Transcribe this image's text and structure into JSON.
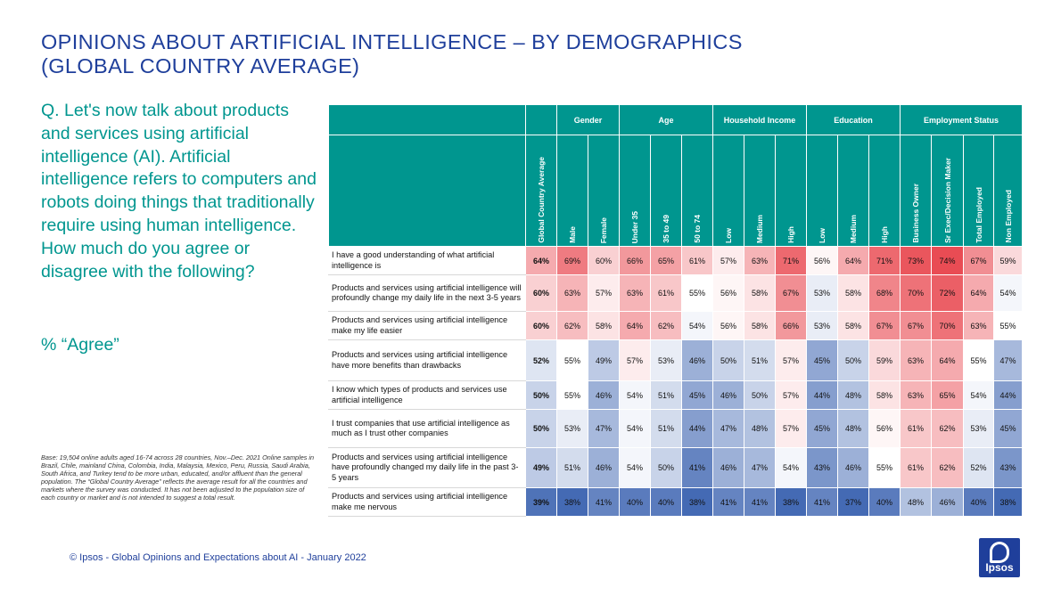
{
  "title_line1": "OPINIONS ABOUT ARTIFICIAL INTELLIGENCE – BY DEMOGRAPHICS",
  "title_line2": "(GLOBAL COUNTRY AVERAGE)",
  "question": "Q. Let's now talk about products and services using artificial intelligence (AI). Artificial intelligence refers to computers and robots doing things that traditionally require using human intelligence. How much do you agree or disagree with the following?",
  "agree_label": "% “Agree”",
  "base_note": "Base: 19,504 online adults aged 16-74 across 28 countries, Nov.–Dec. 2021 Online samples in Brazil, Chile, mainland China, Colombia, India, Malaysia, Mexico, Peru, Russia, Saudi Arabia, South Africa, and Turkey tend to be more urban, educated, and/or affluent than the general population. The “Global Country Average” reflects the average result for all the countries and markets where the survey was conducted. It has not been adjusted to the population size of each country or market and is not intended to suggest a total result.",
  "footer": "© Ipsos - Global Opinions and Expectations about AI - January 2022",
  "logo_text": "Ipsos",
  "colors": {
    "title": "#1f3f9b",
    "teal": "#00968f",
    "red_high": "#e8434b",
    "blue_low": "#3a62b0"
  },
  "chart_data": {
    "type": "table",
    "unit": "%",
    "groups": [
      {
        "label": "",
        "span": 1
      },
      {
        "label": "Gender",
        "span": 2
      },
      {
        "label": "Age",
        "span": 3
      },
      {
        "label": "Household Income",
        "span": 3
      },
      {
        "label": "Education",
        "span": 3
      },
      {
        "label": "Employment Status",
        "span": 4
      }
    ],
    "columns": [
      "Global Country Average",
      "Male",
      "Female",
      "Under 35",
      "35 to 49",
      "50 to 74",
      "Low",
      "Medium",
      "High",
      "Low",
      "Medium",
      "High",
      "Business Owner",
      "Sr Exec/Decision Maker",
      "Total Employed",
      "Non Employed"
    ],
    "rows": [
      {
        "label": "I have a good understanding of what artificial intelligence is",
        "values": [
          64,
          69,
          60,
          66,
          65,
          61,
          57,
          63,
          71,
          56,
          64,
          71,
          73,
          74,
          67,
          59
        ]
      },
      {
        "label": "Products and services using artificial intelligence will profoundly change my daily life in the next 3-5 years",
        "values": [
          60,
          63,
          57,
          63,
          61,
          55,
          56,
          58,
          67,
          53,
          58,
          68,
          70,
          72,
          64,
          54
        ]
      },
      {
        "label": "Products and services using artificial intelligence make my life easier",
        "values": [
          60,
          62,
          58,
          64,
          62,
          54,
          56,
          58,
          66,
          53,
          58,
          67,
          67,
          70,
          63,
          55
        ]
      },
      {
        "label": "Products and services using artificial intelligence have more benefits than drawbacks",
        "values": [
          52,
          55,
          49,
          57,
          53,
          46,
          50,
          51,
          57,
          45,
          50,
          59,
          63,
          64,
          55,
          47
        ]
      },
      {
        "label": "I know which types of products and services use artificial intelligence",
        "values": [
          50,
          55,
          46,
          54,
          51,
          45,
          46,
          50,
          57,
          44,
          48,
          58,
          63,
          65,
          54,
          44
        ]
      },
      {
        "label": "I trust companies that use artificial intelligence as much as I trust other companies",
        "values": [
          50,
          53,
          47,
          54,
          51,
          44,
          47,
          48,
          57,
          45,
          48,
          56,
          61,
          62,
          53,
          45
        ]
      },
      {
        "label": "Products and services using artificial intelligence have profoundly changed my daily life in the past 3-5 years",
        "values": [
          49,
          51,
          46,
          54,
          50,
          41,
          46,
          47,
          54,
          43,
          46,
          55,
          61,
          62,
          52,
          43
        ]
      },
      {
        "label": "Products and services using artificial intelligence make me nervous",
        "values": [
          39,
          38,
          41,
          40,
          40,
          38,
          41,
          41,
          38,
          41,
          37,
          40,
          48,
          46,
          40,
          38
        ]
      }
    ]
  }
}
